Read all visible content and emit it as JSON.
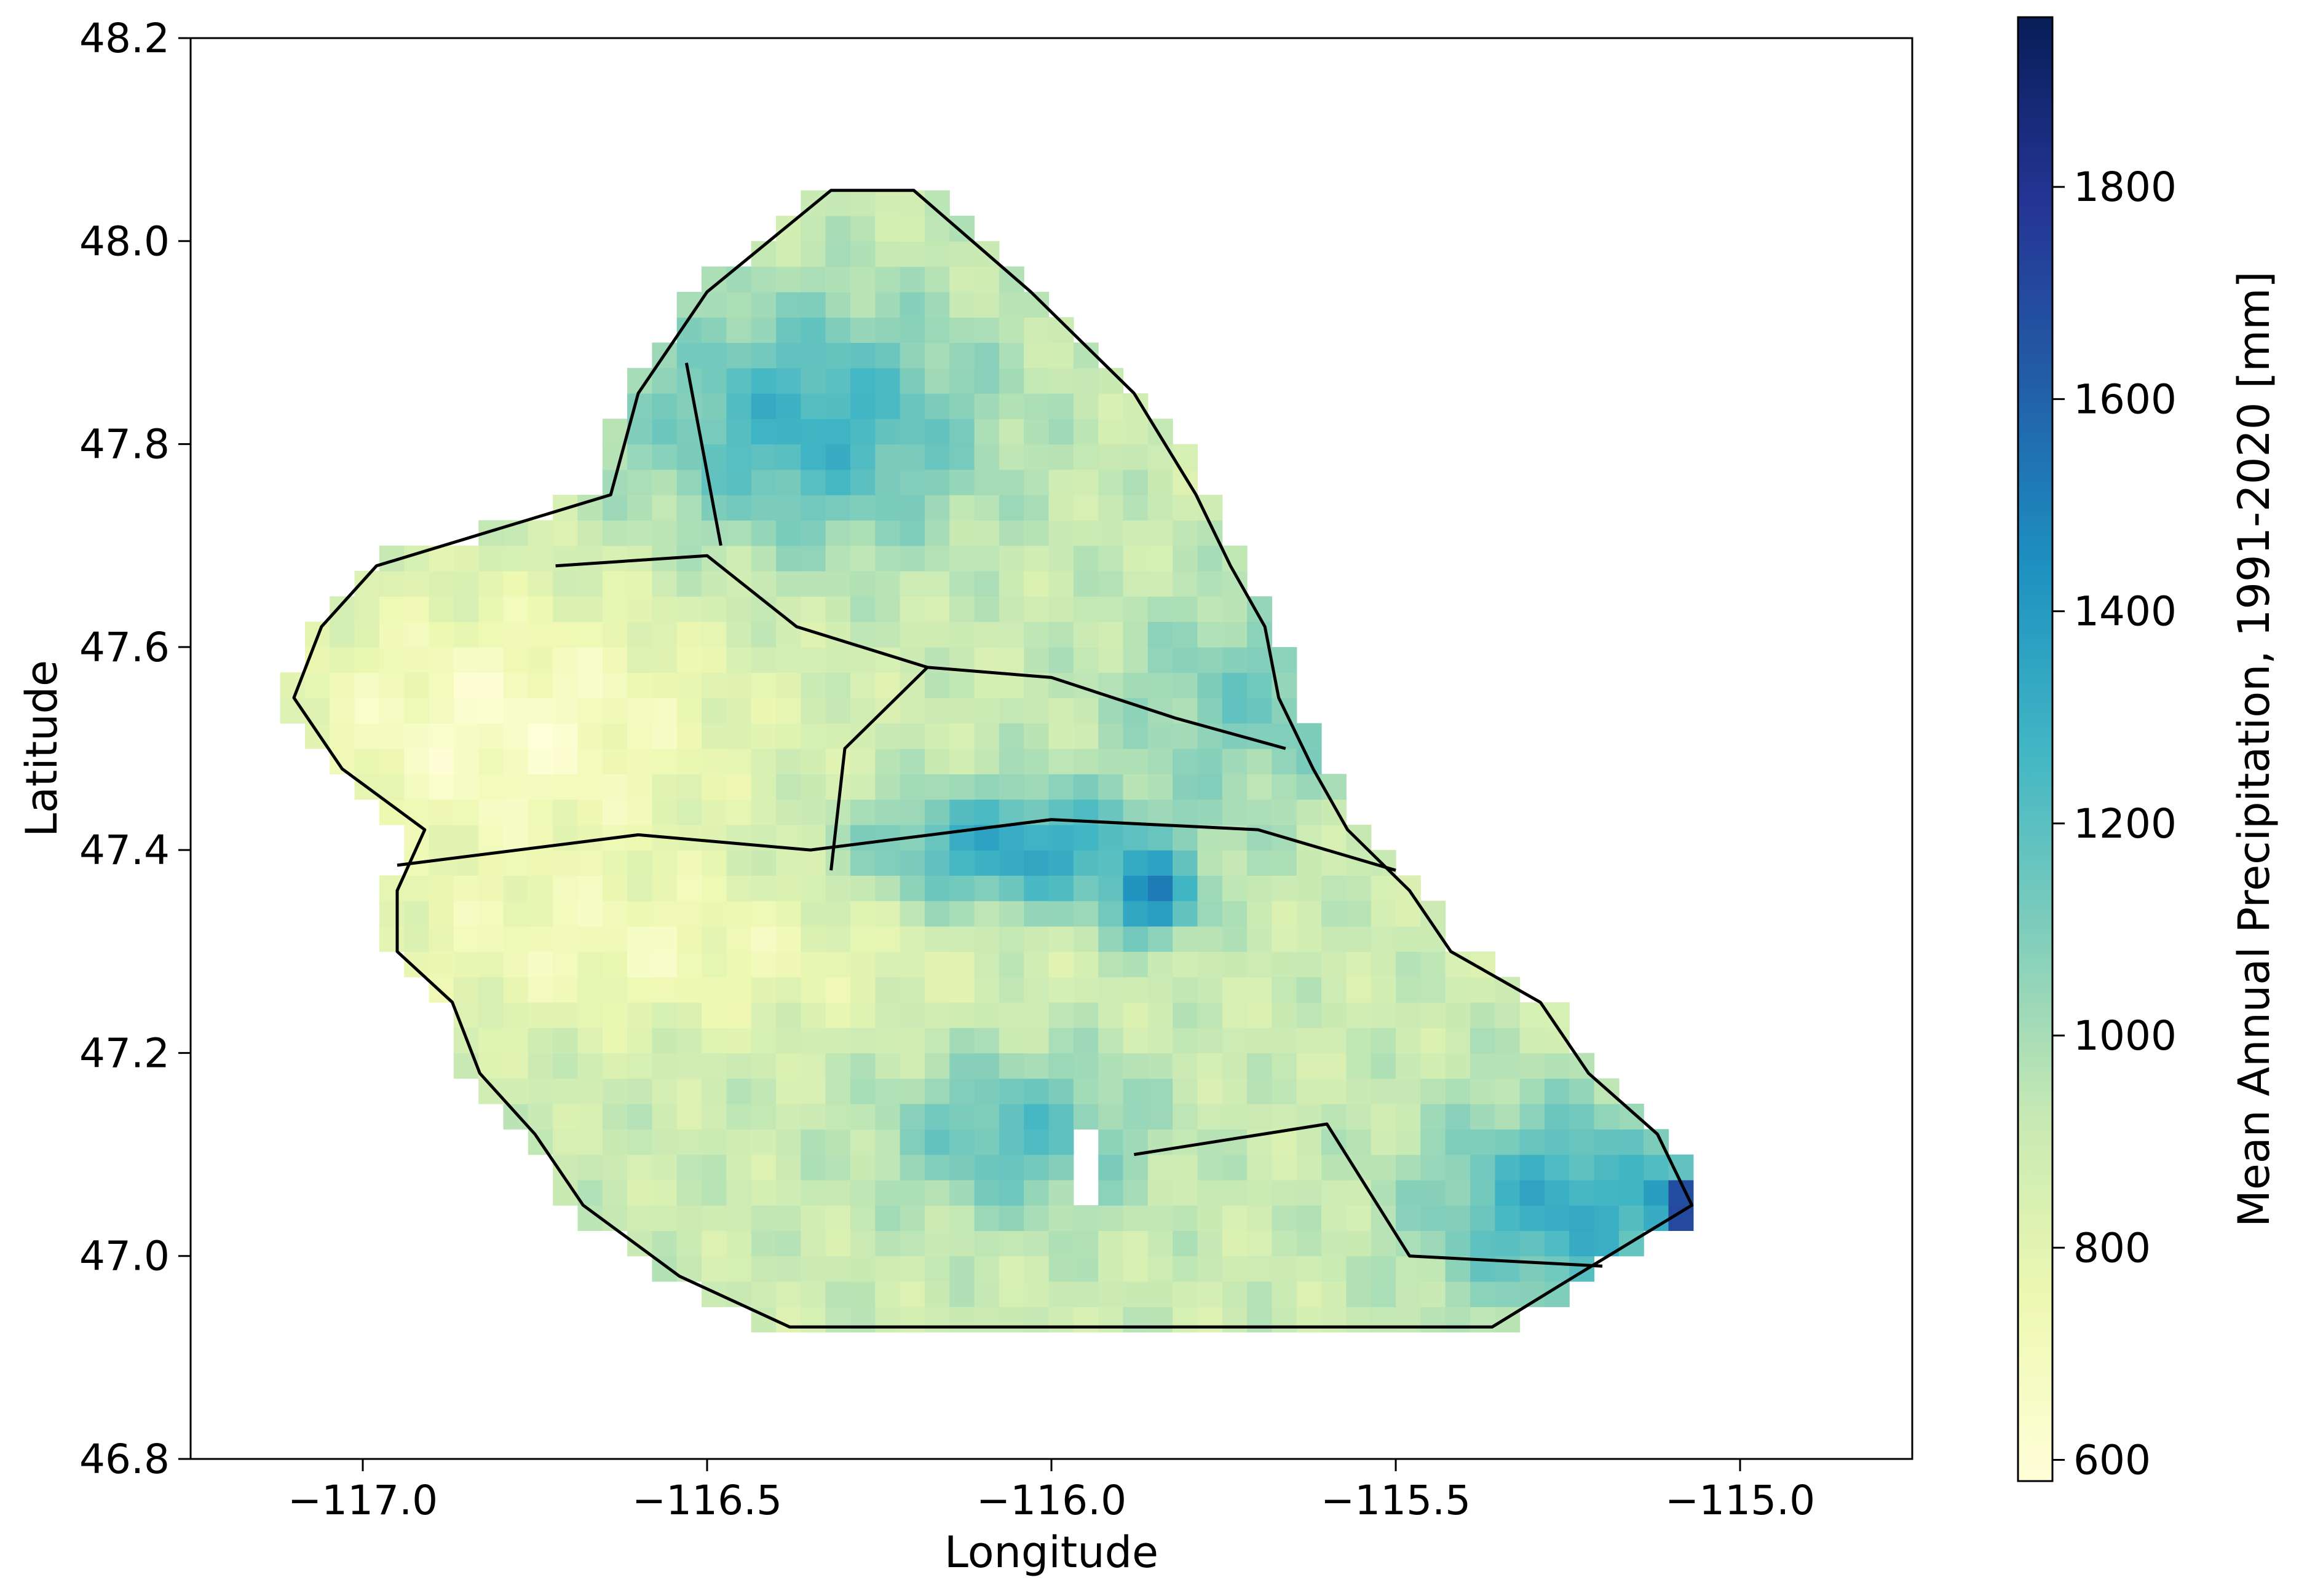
{
  "map": {
    "xlabel": "Longitude",
    "ylabel": "Latitude",
    "colorbar_label": "Mean Annual Precipitation, 1991-2020 [mm]",
    "cmap": "YlGnBu",
    "cmap_stops": [
      "#ffffd9",
      "#edf8b1",
      "#c7e9b4",
      "#7fcdbb",
      "#41b6c4",
      "#1d91c0",
      "#225ea8",
      "#253494",
      "#081d58"
    ]
  },
  "chart_data": {
    "type": "heatmap",
    "xlim": [
      -117.25,
      -114.75
    ],
    "ylim": [
      46.8,
      48.2
    ],
    "x_ticks": [
      -117.0,
      -116.5,
      -116.0,
      -115.5,
      -115.0
    ],
    "x_tick_labels": [
      "−117.0",
      "−116.5",
      "−116.0",
      "−115.5",
      "−115.0"
    ],
    "y_ticks": [
      46.8,
      47.0,
      47.2,
      47.4,
      47.6,
      47.8,
      48.0,
      48.2
    ],
    "y_tick_labels": [
      "46.8",
      "47.0",
      "47.2",
      "47.4",
      "47.6",
      "47.8",
      "48.0",
      "48.2"
    ],
    "colorbar_range": [
      580,
      1960
    ],
    "colorbar_ticks": [
      600,
      800,
      1000,
      1200,
      1400,
      1600,
      1800
    ],
    "colorbar_tick_labels": [
      "600",
      "800",
      "1000",
      "1200",
      "1400",
      "1600",
      "1800"
    ],
    "grid_cell_size_deg": [
      0.036,
      0.025
    ],
    "region_profile": [
      [
        48.05,
        -116.34,
        -116.18
      ],
      [
        47.95,
        -116.52,
        -116.01
      ],
      [
        47.85,
        -116.62,
        -115.86
      ],
      [
        47.75,
        -116.66,
        -115.77
      ],
      [
        47.68,
        -117.0,
        -115.72
      ],
      [
        47.62,
        -117.08,
        -115.67
      ],
      [
        47.55,
        -117.12,
        -115.65
      ],
      [
        47.48,
        -117.05,
        -115.6
      ],
      [
        47.42,
        -116.93,
        -115.55
      ],
      [
        47.36,
        -116.97,
        -115.46
      ],
      [
        47.3,
        -116.97,
        -115.4
      ],
      [
        47.25,
        -116.89,
        -115.27
      ],
      [
        47.18,
        -116.85,
        -115.2
      ],
      [
        47.12,
        -116.77,
        -115.1
      ],
      [
        47.05,
        -116.7,
        -115.05
      ],
      [
        46.98,
        -116.56,
        -115.22
      ],
      [
        46.93,
        -116.4,
        -115.34
      ]
    ],
    "notes_values": {
      "dry_west": 680,
      "central_ridge": 1450,
      "southeast_max": 1940
    }
  }
}
